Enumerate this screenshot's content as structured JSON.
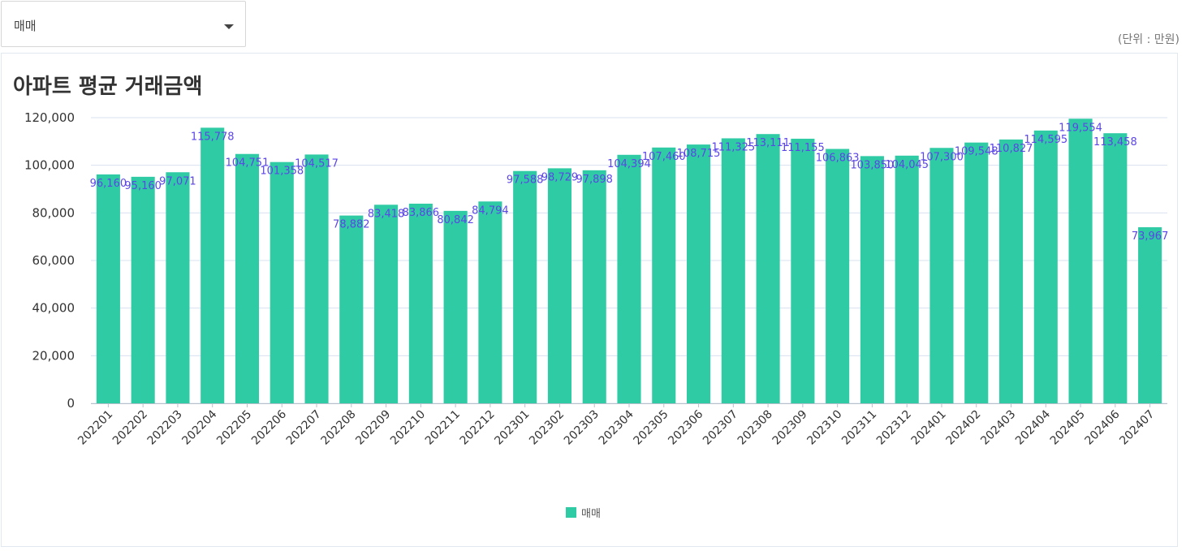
{
  "filter": {
    "selected": "매매"
  },
  "unit_label": "(단위 : 만원)",
  "colors": {
    "bar": "#2ecba5",
    "label": "#5b46e6",
    "grid": "#d9e0ef",
    "axis": "#333333"
  },
  "chart_data": {
    "type": "bar",
    "title": "아파트 평균 거래금액",
    "categories": [
      "202201",
      "202202",
      "202203",
      "202204",
      "202205",
      "202206",
      "202207",
      "202208",
      "202209",
      "202210",
      "202211",
      "202212",
      "202301",
      "202302",
      "202303",
      "202304",
      "202305",
      "202306",
      "202307",
      "202308",
      "202309",
      "202310",
      "202311",
      "202312",
      "202401",
      "202402",
      "202403",
      "202404",
      "202405",
      "202406",
      "202407"
    ],
    "series": [
      {
        "name": "매매",
        "values": [
          96160,
          95160,
          97071,
          115778,
          104751,
          101358,
          104517,
          78882,
          83418,
          83866,
          80842,
          84794,
          97588,
          98729,
          97898,
          104394,
          107460,
          108715,
          111325,
          113111,
          111155,
          106863,
          103850,
          104045,
          107300,
          109548,
          110827,
          114595,
          119554,
          113458,
          73967
        ],
        "labels": [
          "96,160",
          "95,160",
          "97,071",
          "115,778",
          "104,751",
          "101,358",
          "104,517",
          "78,882",
          "83,418",
          "83,866",
          "80,842",
          "84,794",
          "97,588",
          "98,729",
          "97,898",
          "104,394",
          "107,460",
          "108,715",
          "111,325",
          "113,111",
          "111,155",
          "106,863",
          "103,850",
          "104,045",
          "107,300",
          "109,548",
          "110,827",
          "114,595",
          "119,554",
          "113,458",
          "73,967"
        ]
      }
    ],
    "ylim": [
      0,
      120000
    ],
    "yticks": [
      0,
      20000,
      40000,
      60000,
      80000,
      100000,
      120000
    ],
    "ytick_labels": [
      "0",
      "20,000",
      "40,000",
      "60,000",
      "80,000",
      "100,000",
      "120,000"
    ],
    "grid": true,
    "legend_position": "bottom"
  }
}
